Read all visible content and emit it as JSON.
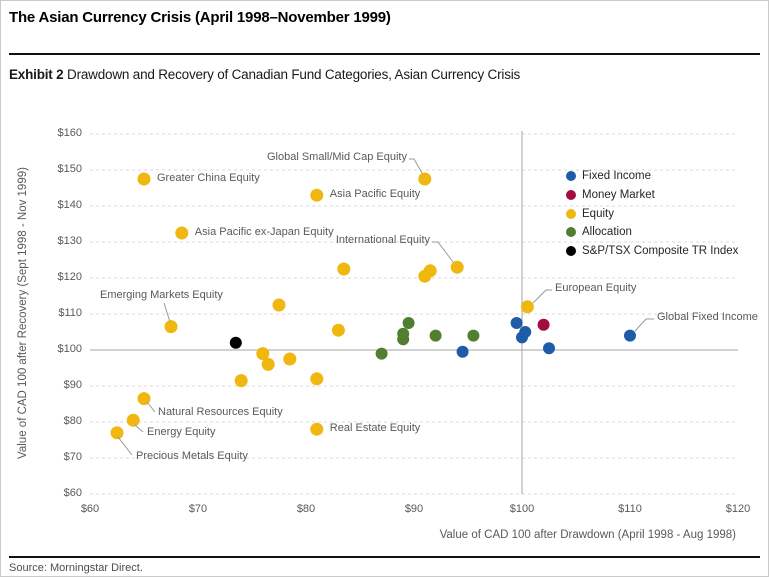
{
  "header": {
    "title": "The Asian Currency Crisis (April 1998–November 1999)",
    "exhibit_label": "Exhibit 2",
    "exhibit_title": "Drawdown and Recovery of Canadian Fund Categories, Asian Currency Crisis"
  },
  "footer": {
    "source": "Source: Morningstar Direct."
  },
  "chart_data": {
    "type": "scatter",
    "title": "Exhibit 2 Drawdown and Recovery of Canadian Fund Categories, Asian Currency Crisis",
    "xlabel": "Value of CAD 100 after Drawdown (April 1998 - Aug 1998)",
    "ylabel": "Value of CAD 100 after Recovery (Sept 1998 - Nov 1999)",
    "xlim": [
      60,
      120
    ],
    "ylim": [
      60,
      160
    ],
    "xtick_values": [
      60,
      70,
      80,
      90,
      100,
      110,
      120
    ],
    "xtick_labels": [
      "$60",
      "$70",
      "$80",
      "$90",
      "$100",
      "$110",
      "$120"
    ],
    "ytick_values": [
      60,
      70,
      80,
      90,
      100,
      110,
      120,
      130,
      140,
      150,
      160
    ],
    "ytick_labels": [
      "$60",
      "$70",
      "$80",
      "$90",
      "$100",
      "$110",
      "$120",
      "$130",
      "$140",
      "$150",
      "$160"
    ],
    "grid": "horizontal dashed gridlines; solid gray reference lines at x=100 and y=100",
    "ref_lines": {
      "x": 100,
      "y": 100
    },
    "legend_position": "upper right inside plot",
    "series": [
      {
        "name": "Fixed Income",
        "color": "#1F5CA8",
        "points": [
          {
            "x": 99.5,
            "y": 107.5
          },
          {
            "x": 100.3,
            "y": 105
          },
          {
            "x": 100,
            "y": 103.5
          },
          {
            "x": 94.5,
            "y": 99.5
          },
          {
            "x": 102.5,
            "y": 100.5
          },
          {
            "x": 110,
            "y": 104,
            "label": "Global Fixed Income",
            "id": "global-fixed-income"
          }
        ]
      },
      {
        "name": "Money Market",
        "color": "#A30D40",
        "points": [
          {
            "x": 102,
            "y": 107
          }
        ]
      },
      {
        "name": "Equity",
        "color": "#EFB70F",
        "points": [
          {
            "x": 65,
            "y": 147.5,
            "label": "Greater China Equity",
            "id": "greater-china"
          },
          {
            "x": 91,
            "y": 147.5,
            "label": "Global Small/Mid Cap Equity",
            "id": "global-small-mid"
          },
          {
            "x": 81,
            "y": 143,
            "label": "Asia Pacific Equity",
            "id": "asia-pacific"
          },
          {
            "x": 68.5,
            "y": 132.5,
            "label": "Asia Pacific ex-Japan Equity",
            "id": "asia-pacific-ex-japan"
          },
          {
            "x": 83.5,
            "y": 122.5
          },
          {
            "x": 91,
            "y": 120.5
          },
          {
            "x": 91.5,
            "y": 122
          },
          {
            "x": 94,
            "y": 123,
            "label": "International Equity",
            "id": "international"
          },
          {
            "x": 77.5,
            "y": 112.5
          },
          {
            "x": 100.5,
            "y": 112,
            "label": "European Equity",
            "id": "european"
          },
          {
            "x": 67.5,
            "y": 106.5,
            "label": "Emerging Markets Equity",
            "id": "emerging-markets"
          },
          {
            "x": 83,
            "y": 105.5
          },
          {
            "x": 76,
            "y": 99
          },
          {
            "x": 78.5,
            "y": 97.5
          },
          {
            "x": 76.5,
            "y": 96
          },
          {
            "x": 74,
            "y": 91.5
          },
          {
            "x": 81,
            "y": 92
          },
          {
            "x": 65,
            "y": 86.5,
            "label": "Natural Resources Equity",
            "id": "natural-resources"
          },
          {
            "x": 64,
            "y": 80.5,
            "label": "Energy Equity",
            "id": "energy"
          },
          {
            "x": 62.5,
            "y": 77,
            "label": "Precious Metals Equity",
            "id": "precious-metals"
          },
          {
            "x": 81,
            "y": 78,
            "label": "Real Estate Equity",
            "id": "real-estate"
          }
        ]
      },
      {
        "name": "Allocation",
        "color": "#527F2F",
        "points": [
          {
            "x": 89.5,
            "y": 107.5
          },
          {
            "x": 89,
            "y": 104.5
          },
          {
            "x": 89,
            "y": 103
          },
          {
            "x": 92,
            "y": 104
          },
          {
            "x": 95.5,
            "y": 104
          },
          {
            "x": 87,
            "y": 99
          }
        ]
      },
      {
        "name": "S&P/TSX Composite TR Index",
        "color": "#000000",
        "points": [
          {
            "x": 73.5,
            "y": 102
          }
        ]
      }
    ]
  }
}
